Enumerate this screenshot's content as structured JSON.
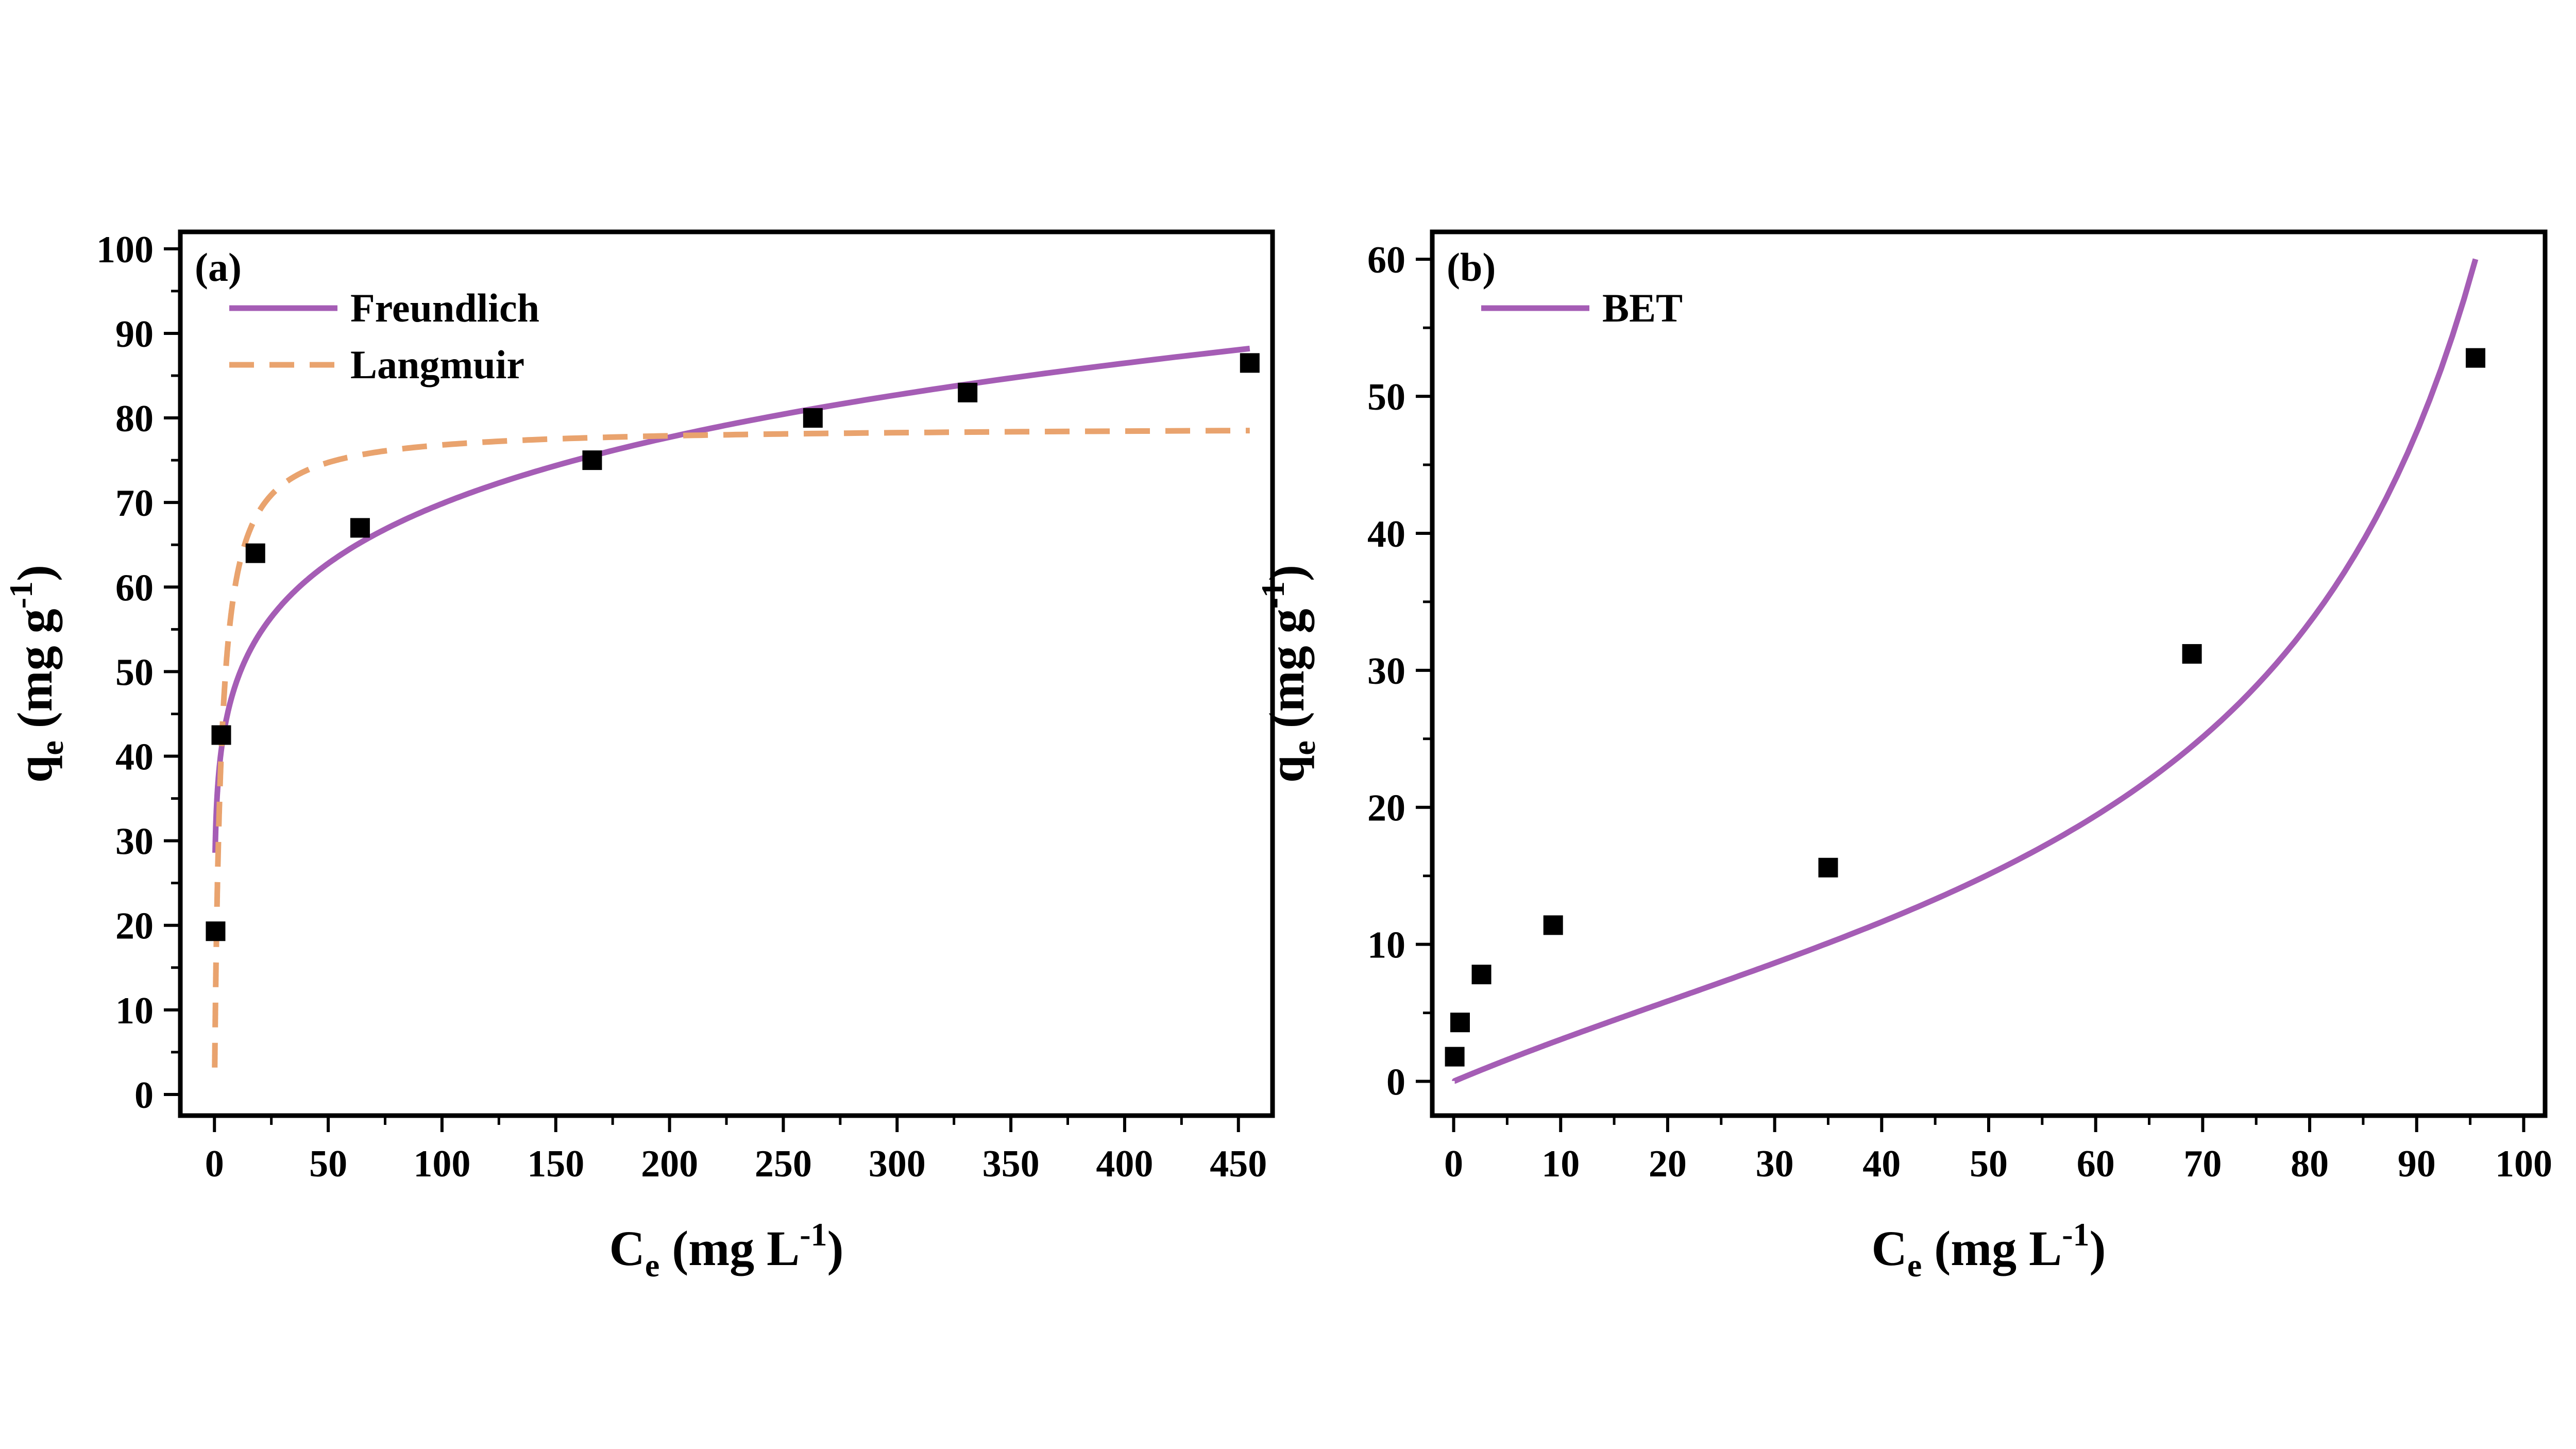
{
  "chart_data": [
    {
      "panel_label": "(a)",
      "type": "scatter",
      "xlabel": {
        "main": "C",
        "sub": "e",
        "unit_pre": " (mg L",
        "sup": "-1",
        "unit_post": ")"
      },
      "ylabel": {
        "main": "q",
        "sub": "e",
        "unit_pre": " (mg g",
        "sup": "-1",
        "unit_post": ")"
      },
      "xlim": [
        -15,
        465
      ],
      "ylim": [
        -2.5,
        102
      ],
      "xticks": [
        0,
        50,
        100,
        150,
        200,
        250,
        300,
        350,
        400,
        450
      ],
      "yticks": [
        0,
        10,
        20,
        30,
        40,
        50,
        60,
        70,
        80,
        90,
        100
      ],
      "grid": false,
      "legend_position": "top-left",
      "points": {
        "x": [
          0.5,
          3,
          18,
          64,
          166,
          263,
          331,
          455
        ],
        "y": [
          19.3,
          42.5,
          64,
          67,
          75,
          80,
          83,
          86.5
        ]
      },
      "series": [
        {
          "name": "Freundlich",
          "style": "solid",
          "color": "#A55DB5",
          "model": "freundlich",
          "params": {
            "KF": 34.4,
            "n": 6.5
          },
          "x_range": [
            0.3,
            455
          ]
        },
        {
          "name": "Langmuir",
          "style": "dashed",
          "color": "#E9A36E",
          "model": "langmuir",
          "params": {
            "qm": 79,
            "KL": 0.35
          },
          "x_range": [
            0.12,
            455
          ]
        }
      ]
    },
    {
      "panel_label": "(b)",
      "type": "scatter",
      "xlabel": {
        "main": "C",
        "sub": "e",
        "unit_pre": " (mg L",
        "sup": "-1",
        "unit_post": ")"
      },
      "ylabel": {
        "main": "q",
        "sub": "e",
        "unit_pre": " (mg g",
        "sup": "-1",
        "unit_post": ")"
      },
      "xlim": [
        -2,
        102
      ],
      "ylim": [
        -2.5,
        62
      ],
      "xticks": [
        0,
        10,
        20,
        30,
        40,
        50,
        60,
        70,
        80,
        90,
        100
      ],
      "yticks": [
        0,
        10,
        20,
        30,
        40,
        50,
        60
      ],
      "grid": false,
      "legend_position": "top-left",
      "points": {
        "x": [
          0.1,
          0.6,
          2.6,
          9.3,
          35,
          69,
          95.5
        ],
        "y": [
          1.8,
          4.3,
          7.8,
          11.4,
          15.6,
          31.2,
          52.8
        ]
      },
      "series": [
        {
          "name": "BET",
          "style": "solid",
          "color": "#A55DB5",
          "model": "bet",
          "params": {
            "qm": 12.6,
            "CB": 3.1,
            "Cs": 118.6
          },
          "x_range": [
            0.1,
            95.5
          ]
        }
      ]
    }
  ]
}
